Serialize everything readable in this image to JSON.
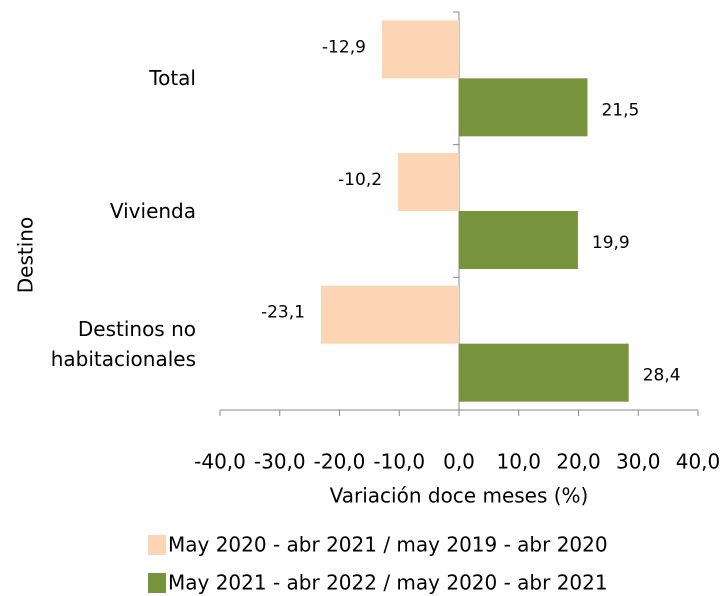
{
  "chart_data": {
    "type": "bar",
    "orientation": "horizontal",
    "categories": [
      "Total",
      "Vivienda",
      "Destinos no habitacionales"
    ],
    "series": [
      {
        "name": "May 2020 - abr 2021 / may 2019 - abr 2020",
        "color": "#fcd5b5",
        "values": [
          -12.9,
          -10.2,
          -23.1
        ],
        "value_labels": [
          "-12,9",
          "-10,2",
          "-23,1"
        ]
      },
      {
        "name": "May 2021 - abr 2022 / may 2020 - abr 2021",
        "color": "#77933c",
        "values": [
          21.5,
          19.9,
          28.4
        ],
        "value_labels": [
          "21,5",
          "19,9",
          "28,4"
        ]
      }
    ],
    "xlabel": "Variación doce meses (%)",
    "ylabel": "Destino",
    "xlim": [
      -40,
      40
    ],
    "xticks": [
      {
        "value": -40,
        "label": "-40,0"
      },
      {
        "value": -30,
        "label": "-30,0"
      },
      {
        "value": -20,
        "label": "-20,0"
      },
      {
        "value": -10,
        "label": "-10,0"
      },
      {
        "value": 0,
        "label": "0,0"
      },
      {
        "value": 10,
        "label": "10,0"
      },
      {
        "value": 20,
        "label": "20,0"
      },
      {
        "value": 30,
        "label": "30,0"
      },
      {
        "value": 40,
        "label": "40,0"
      }
    ],
    "grid": false,
    "legend": "bottom"
  }
}
